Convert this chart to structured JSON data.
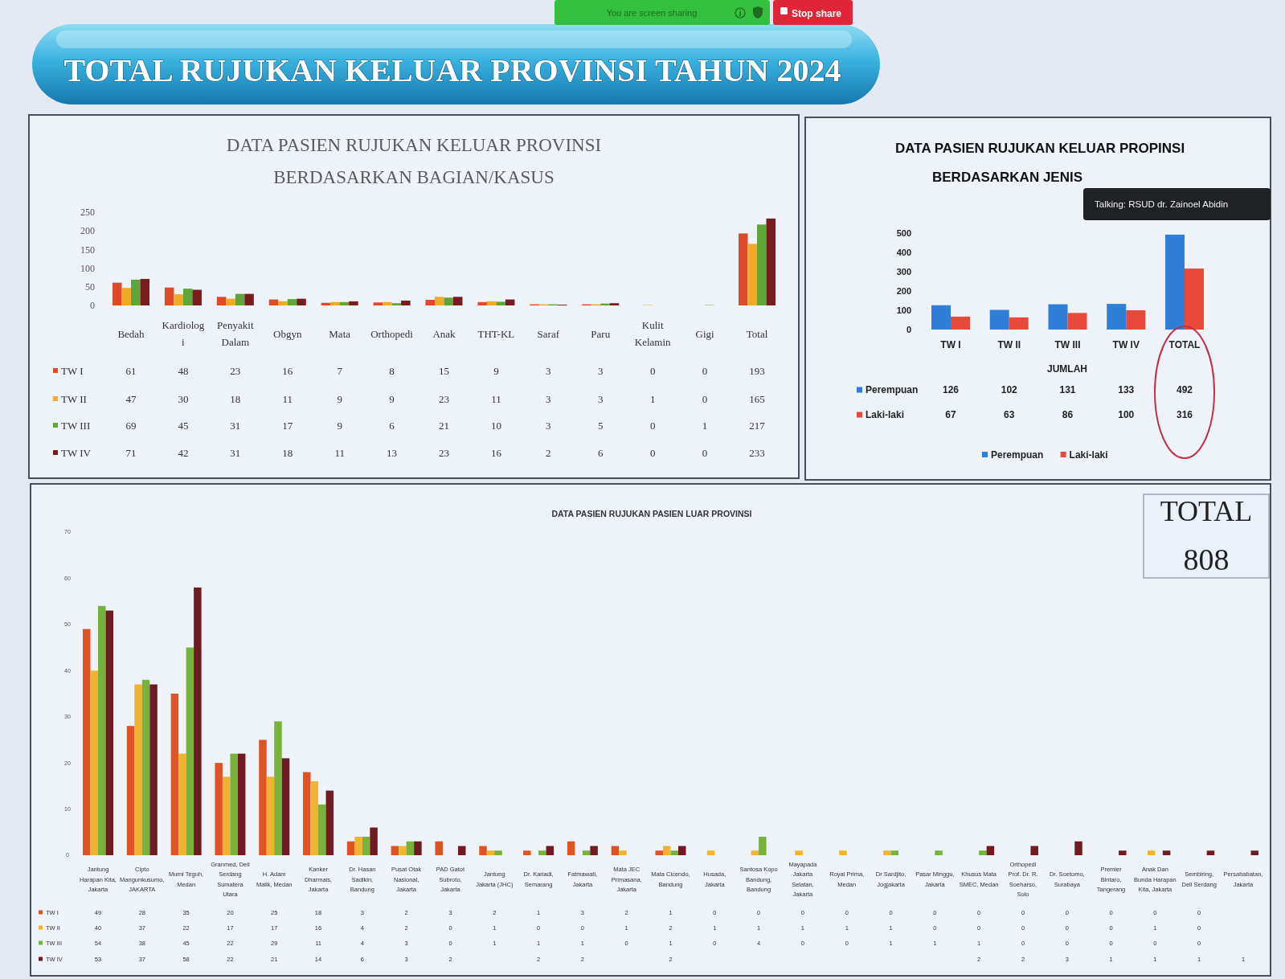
{
  "chart_data": [
    {
      "type": "other",
      "title": "TOTAL RUJUKAN KELUAR PROVINSI TAHUN 2024",
      "annotations": [
        "You are screen sharing",
        "Stop share"
      ]
    },
    {
      "type": "bar",
      "title": "DATA PASIEN RUJUKAN KELUAR PROVINSI BERDASARKAN BAGIAN/KASUS",
      "categories": [
        "Bedah",
        "Kardiologi",
        "Penyakit Dalam",
        "Obgyn",
        "Mata",
        "Orthopedi",
        "Anak",
        "THT-KL",
        "Saraf",
        "Paru",
        "Kulit Kelamin",
        "Gigi",
        "Total"
      ],
      "series": [
        {
          "name": "TW I",
          "color": "#dc4a28",
          "values": [
            61,
            48,
            23,
            16,
            7,
            8,
            15,
            9,
            3,
            3,
            0,
            0,
            193
          ]
        },
        {
          "name": "TW II",
          "color": "#f2aa26",
          "values": [
            47,
            30,
            18,
            11,
            9,
            9,
            23,
            11,
            3,
            3,
            1,
            0,
            165
          ]
        },
        {
          "name": "TW III",
          "color": "#5fa63a",
          "values": [
            69,
            45,
            31,
            17,
            9,
            6,
            21,
            10,
            3,
            5,
            0,
            1,
            217
          ]
        },
        {
          "name": "TW IV",
          "color": "#7a1c1f",
          "values": [
            71,
            42,
            31,
            18,
            11,
            13,
            23,
            16,
            2,
            6,
            0,
            0,
            233
          ]
        }
      ],
      "ylim": [
        0,
        250
      ],
      "yticks": [
        0,
        50,
        100,
        150,
        200,
        250
      ],
      "data_labels": true,
      "legend": "bottom left"
    },
    {
      "type": "bar",
      "title": "DATA PASIEN RUJUKAN KELUAR PROPINSI BERDASARKAN JENIS",
      "xlabel": "JUMLAH",
      "categories": [
        "TW I",
        "TW II",
        "TW III",
        "TW IV",
        "TOTAL"
      ],
      "series": [
        {
          "name": "Perempuan",
          "color": "#2f7fd8",
          "values": [
            126,
            102,
            131,
            133,
            492
          ]
        },
        {
          "name": "Laki-laki",
          "color": "#e8493b",
          "values": [
            67,
            63,
            86,
            100,
            316
          ]
        }
      ],
      "ylim": [
        0,
        500
      ],
      "yticks": [
        0,
        100,
        200,
        300,
        400,
        500
      ],
      "data_labels": true,
      "legend": "bottom",
      "annotations": [
        "Talking: RSUD dr. Zainoel Abidin"
      ]
    },
    {
      "type": "bar",
      "title": "DATA PASIEN RUJUKAN PASIEN LUAR PROVINSI",
      "categories": [
        "Jantung Harapan Kita, Jakarta",
        "Cipto Mangunkusumo, JAKARTA",
        "Murni Teguh, Medan",
        "Granmed, Deli Serdang Sumatera Utara",
        "H. Adam Malik, Medan",
        "Kanker Dharmais, Jakarta",
        "Dr. Hasan Sadikin, Bandung",
        "Pusat Otak Nasional, Jakarta",
        "PAD Gatot Subroto, Jakarta",
        "Jantung Jakarta (JHC)",
        "Dr. Kariadi, Semarang",
        "Fatmawati, Jakarta",
        "Mata JEC Primasana, Jakarta",
        "Mata Cicendo, Bandung",
        "Husada, Jakarta",
        "Santosa Kopo Bandung, Bandung",
        "Mayapada Jakarta Selatan, Jakarta",
        "Royal Prima, Medan",
        "Dr Sardjito, Jogjakarta",
        "Pasar Minggu, Jakarta",
        "Khusus Mata SMEC, Medan",
        "Orthopedi Prof. Dr. R. Soeharso, Solo",
        "Dr. Soetomo, Surabaya",
        "Premier Bintaro, Tangerang",
        "Anak Dan Bunda Harapan Kita, Jakarta",
        "Sembiring, Deli Serdang",
        "Persahabatan, Jakarta"
      ],
      "series": [
        {
          "name": "TW I",
          "color": "#de5424",
          "values": [
            49,
            28,
            35,
            20,
            25,
            18,
            3,
            2,
            3,
            2,
            1,
            3,
            2,
            1,
            0,
            0,
            0,
            0,
            0,
            0,
            0,
            0,
            0,
            0,
            0,
            0,
            null
          ]
        },
        {
          "name": "TW II",
          "color": "#f0b332",
          "values": [
            40,
            37,
            22,
            17,
            17,
            16,
            4,
            2,
            0,
            1,
            0,
            0,
            1,
            2,
            1,
            1,
            1,
            1,
            1,
            0,
            0,
            0,
            0,
            0,
            1,
            0,
            null
          ]
        },
        {
          "name": "TW III",
          "color": "#77b23c",
          "values": [
            54,
            38,
            45,
            22,
            29,
            11,
            4,
            3,
            0,
            1,
            1,
            1,
            0,
            1,
            0,
            4,
            0,
            0,
            1,
            1,
            1,
            0,
            0,
            0,
            0,
            0,
            null
          ]
        },
        {
          "name": "TW IV",
          "color": "#6e1c22",
          "values": [
            53,
            37,
            58,
            22,
            21,
            14,
            6,
            3,
            2,
            null,
            2,
            2,
            null,
            2,
            null,
            null,
            null,
            null,
            null,
            null,
            2,
            2,
            3,
            1,
            1,
            1,
            1
          ]
        }
      ],
      "ylim": [
        0,
        70
      ],
      "yticks": [
        0,
        10,
        20,
        30,
        40,
        50,
        60,
        70
      ],
      "data_labels": true,
      "legend": "bottom left"
    },
    {
      "type": "other",
      "title": "TOTAL",
      "annotations": [
        "808"
      ]
    }
  ]
}
